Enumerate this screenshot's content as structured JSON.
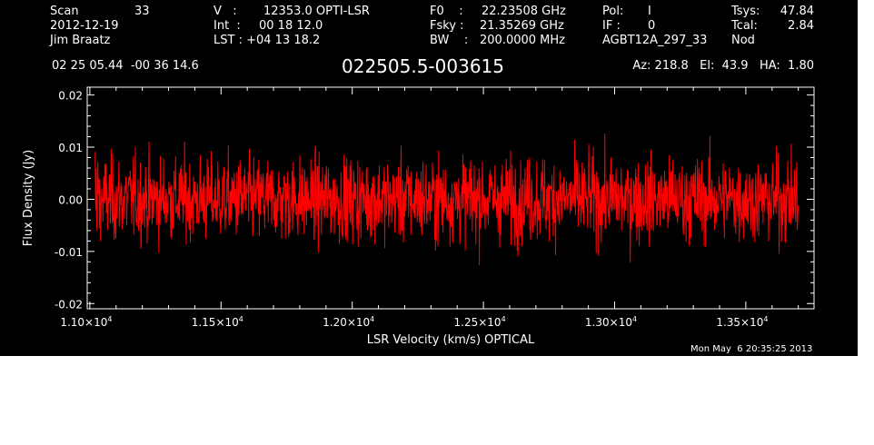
{
  "header": {
    "scan_label": "Scan",
    "scan_number": "33",
    "date": "2012-12-19",
    "observer": "Jim Braatz",
    "v_label": "V   :",
    "v_value": "12353.0 OPTI-LSR",
    "int_label": "Int  :",
    "int_value": "00 18 12.0",
    "lst_label": "LST : +04 13 18.2",
    "f0_label": "F0    :",
    "f0_value": "22.23508 GHz",
    "fsky_label": "Fsky :",
    "fsky_value": "21.35269 GHz",
    "bw_label": "BW    :",
    "bw_value": "200.0000 MHz",
    "pol_label": "Pol:",
    "pol_value": "I",
    "if_label": "IF :",
    "if_value": "0",
    "project": "AGBT12A_297_33",
    "tsys_label": "Tsys:",
    "tsys_value": "47.84",
    "tcal_label": "Tcal:",
    "tcal_value": "2.84",
    "mode": "Nod",
    "coords": "02 25 05.44  -00 36 14.6",
    "source": "022505.5-003615",
    "az_el_ha": "Az: 218.8   El:  43.9   HA:  1.80"
  },
  "footer": {
    "timestamp": "Mon May  6 20:35:25 2013"
  },
  "chart_data": {
    "type": "line",
    "title": "022505.5-003615",
    "xlabel": "LSR Velocity (km/s) OPTICAL",
    "ylabel": "Flux Density (Jy)",
    "xlim": [
      10990,
      13760
    ],
    "ylim": [
      -0.021,
      0.0215
    ],
    "x_ticks": [
      11000,
      11500,
      12000,
      12500,
      13000,
      13500
    ],
    "x_tick_labels": [
      {
        "mantissa": "1.10×10",
        "exp": "4"
      },
      {
        "mantissa": "1.15×10",
        "exp": "4"
      },
      {
        "mantissa": "1.20×10",
        "exp": "4"
      },
      {
        "mantissa": "1.25×10",
        "exp": "4"
      },
      {
        "mantissa": "1.30×10",
        "exp": "4"
      },
      {
        "mantissa": "1.35×10",
        "exp": "4"
      }
    ],
    "y_ticks": [
      0.02,
      0.01,
      0.0,
      -0.01,
      -0.02
    ],
    "y_tick_labels": [
      "0.02",
      "0.01",
      "0.00",
      "-0.01",
      "-0.02"
    ],
    "grid": false,
    "series": [
      {
        "color": "#ff0000",
        "x_start": 11020,
        "x_end": 13700,
        "y_range": [
          -0.016,
          0.015
        ],
        "mean": 0.0,
        "rms": 0.004,
        "note_values_visible": "noise spectrum, peaks ~+0.015, troughs ~-0.016"
      }
    ]
  }
}
